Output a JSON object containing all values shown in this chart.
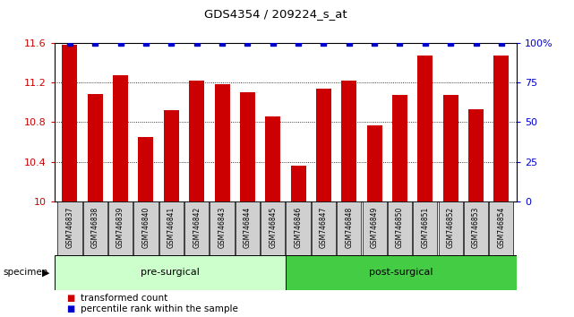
{
  "title": "GDS4354 / 209224_s_at",
  "categories": [
    "GSM746837",
    "GSM746838",
    "GSM746839",
    "GSM746840",
    "GSM746841",
    "GSM746842",
    "GSM746843",
    "GSM746844",
    "GSM746845",
    "GSM746846",
    "GSM746847",
    "GSM746848",
    "GSM746849",
    "GSM746850",
    "GSM746851",
    "GSM746852",
    "GSM746853",
    "GSM746854"
  ],
  "bar_values": [
    11.58,
    11.08,
    11.27,
    10.65,
    10.92,
    11.22,
    11.18,
    11.1,
    10.86,
    10.36,
    11.14,
    11.22,
    10.77,
    11.07,
    11.47,
    11.07,
    10.93,
    11.47
  ],
  "percentile_values": [
    100,
    100,
    100,
    100,
    100,
    100,
    100,
    100,
    100,
    100,
    100,
    100,
    100,
    100,
    100,
    100,
    100,
    100
  ],
  "bar_color": "#cc0000",
  "percentile_color": "#0000cc",
  "ylim_left": [
    10.0,
    11.6
  ],
  "ylim_right": [
    0,
    100
  ],
  "yticks_left": [
    10.0,
    10.4,
    10.8,
    11.2,
    11.6
  ],
  "yticks_right": [
    0,
    25,
    50,
    75,
    100
  ],
  "ytick_labels_left": [
    "10",
    "10.4",
    "10.8",
    "11.2",
    "11.6"
  ],
  "ytick_labels_right": [
    "0",
    "25",
    "50",
    "75",
    "100%"
  ],
  "pre_surgical_count": 9,
  "post_surgical_count": 9,
  "group_labels": [
    "pre-surgical",
    "post-surgical"
  ],
  "pre_color": "#ccffcc",
  "post_color": "#44cc44",
  "specimen_label": "specimen",
  "legend_items": [
    "transformed count",
    "percentile rank within the sample"
  ],
  "bar_width": 0.6,
  "tick_label_bg": "#d0d0d0"
}
